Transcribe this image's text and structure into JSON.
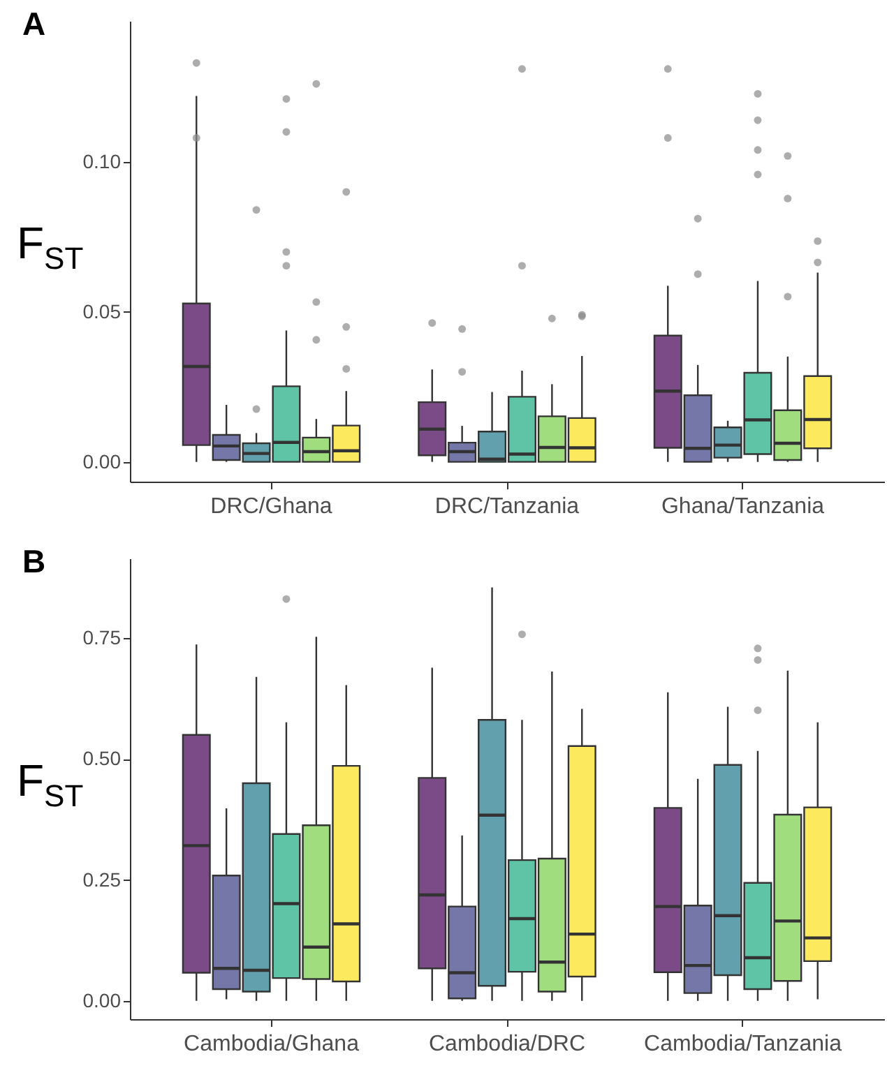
{
  "chart_data": [
    {
      "type": "box",
      "title": "A",
      "ylabel": "F$_{ST}$",
      "categories": [
        "DRC/Ghana",
        "DRC/Tanzania",
        "Ghana/Tanzania"
      ],
      "ylim": [
        -0.0066,
        0.147
      ],
      "yticks": [
        {
          "value": 0,
          "label": "0.00"
        },
        {
          "value": 0.05,
          "label": "0.05"
        },
        {
          "value": 0.1,
          "label": "0.10"
        }
      ],
      "series": [
        {
          "color": "#7b4b87",
          "boxes": [
            {
              "low": 0,
              "q1": 0.0056,
              "median": 0.0318,
              "q3": 0.0528,
              "high": 0.122,
              "outliers": [
                0.133,
                0.108
              ]
            },
            {
              "low": 0,
              "q1": 0.0022,
              "median": 0.0109,
              "q3": 0.0199,
              "high": 0.0308,
              "outliers": [
                0.0463
              ]
            },
            {
              "low": 0,
              "q1": 0.0047,
              "median": 0.0236,
              "q3": 0.0421,
              "high": 0.0587,
              "outliers": [
                0.131,
                0.108
              ]
            }
          ]
        },
        {
          "color": "#7577a9",
          "boxes": [
            {
              "low": 0,
              "q1": 0.0006,
              "median": 0.0053,
              "q3": 0.009,
              "high": 0.019
            },
            {
              "low": 0,
              "q1": 0,
              "median": 0.0034,
              "q3": 0.0064,
              "high": 0.012,
              "outliers": [
                0.0443,
                0.03
              ]
            },
            {
              "low": 0,
              "q1": 0,
              "median": 0.0045,
              "q3": 0.0222,
              "high": 0.0323,
              "outliers": [
                0.0811,
                0.0626
              ]
            }
          ]
        },
        {
          "color": "#62a0ae",
          "boxes": [
            {
              "low": 0,
              "q1": 0,
              "median": 0.0028,
              "q3": 0.0062,
              "high": 0.0096,
              "outliers": [
                0.084,
                0.0176
              ]
            },
            {
              "low": 0,
              "q1": 0,
              "median": 0.0009,
              "q3": 0.0101,
              "high": 0.0233
            },
            {
              "low": 0,
              "q1": 0.0014,
              "median": 0.0056,
              "q3": 0.0115,
              "high": 0.0137
            }
          ]
        },
        {
          "color": "#5ec4a5",
          "boxes": [
            {
              "low": 0,
              "q1": 0,
              "median": 0.0065,
              "q3": 0.0252,
              "high": 0.0438,
              "outliers": [
                0.121,
                0.11,
                0.07,
                0.0654
              ]
            },
            {
              "low": 0,
              "q1": 0,
              "median": 0.0026,
              "q3": 0.0217,
              "high": 0.0304,
              "outliers": [
                0.131,
                0.0654
              ]
            },
            {
              "low": 0,
              "q1": 0.0026,
              "median": 0.014,
              "q3": 0.0297,
              "high": 0.0603,
              "outliers": [
                0.1227,
                0.1139,
                0.104,
                0.0958
              ]
            }
          ]
        },
        {
          "color": "#a0dd7f",
          "boxes": [
            {
              "low": 0,
              "q1": 0,
              "median": 0.0034,
              "q3": 0.0081,
              "high": 0.0143,
              "outliers": [
                0.126,
                0.0533,
                0.0407
              ]
            },
            {
              "low": 0,
              "q1": 0,
              "median": 0.0048,
              "q3": 0.0152,
              "high": 0.0259,
              "outliers": [
                0.0478
              ]
            },
            {
              "low": 0,
              "q1": 0.0006,
              "median": 0.0062,
              "q3": 0.0172,
              "high": 0.0351,
              "outliers": [
                0.102,
                0.0878,
                0.0551
              ]
            }
          ]
        },
        {
          "color": "#fde95e",
          "boxes": [
            {
              "low": 0,
              "q1": 0,
              "median": 0.0037,
              "q3": 0.0121,
              "high": 0.0236,
              "outliers": [
                0.09,
                0.045,
                0.031
              ]
            },
            {
              "low": 0,
              "q1": 0,
              "median": 0.0047,
              "q3": 0.0146,
              "high": 0.0353,
              "outliers": [
                0.049,
                0.0485
              ]
            },
            {
              "low": 0,
              "q1": 0.0045,
              "median": 0.0141,
              "q3": 0.0286,
              "high": 0.0631,
              "outliers": [
                0.0736,
                0.0665
              ]
            }
          ]
        }
      ]
    },
    {
      "type": "box",
      "title": "B",
      "ylabel": "F$_{ST}$",
      "categories": [
        "Cambodia/Ghana",
        "Cambodia/DRC",
        "Cambodia/Tanzania"
      ],
      "ylim": [
        -0.038,
        0.915
      ],
      "yticks": [
        {
          "value": 0,
          "label": "0.00"
        },
        {
          "value": 0.25,
          "label": "0.25"
        },
        {
          "value": 0.5,
          "label": "0.50"
        },
        {
          "value": 0.75,
          "label": "0.75"
        }
      ],
      "series": [
        {
          "color": "#7b4b87",
          "boxes": [
            {
              "low": 0,
              "q1": 0.058,
              "median": 0.321,
              "q3": 0.55,
              "high": 0.737
            },
            {
              "low": 0,
              "q1": 0.067,
              "median": 0.219,
              "q3": 0.461,
              "high": 0.689
            },
            {
              "low": 0,
              "q1": 0.059,
              "median": 0.195,
              "q3": 0.399,
              "high": 0.638
            }
          ]
        },
        {
          "color": "#7577a9",
          "boxes": [
            {
              "low": 0.003,
              "q1": 0.024,
              "median": 0.067,
              "q3": 0.259,
              "high": 0.398
            },
            {
              "low": 0,
              "q1": 0.005,
              "median": 0.058,
              "q3": 0.195,
              "high": 0.342
            },
            {
              "low": 0,
              "q1": 0.016,
              "median": 0.073,
              "q3": 0.197,
              "high": 0.459
            }
          ]
        },
        {
          "color": "#62a0ae",
          "boxes": [
            {
              "low": 0,
              "q1": 0.019,
              "median": 0.063,
              "q3": 0.45,
              "high": 0.67
            },
            {
              "low": 0,
              "q1": 0.031,
              "median": 0.384,
              "q3": 0.581,
              "high": 0.855
            },
            {
              "low": 0,
              "q1": 0.053,
              "median": 0.176,
              "q3": 0.488,
              "high": 0.608
            }
          ]
        },
        {
          "color": "#5ec4a5",
          "boxes": [
            {
              "low": 0,
              "q1": 0.047,
              "median": 0.201,
              "q3": 0.345,
              "high": 0.576,
              "outliers": [
                0.831
              ]
            },
            {
              "low": 0,
              "q1": 0.06,
              "median": 0.17,
              "q3": 0.291,
              "high": 0.581,
              "outliers": [
                0.758
              ]
            },
            {
              "low": 0,
              "q1": 0.024,
              "median": 0.089,
              "q3": 0.244,
              "high": 0.517,
              "outliers": [
                0.729,
                0.705,
                0.601
              ]
            }
          ]
        },
        {
          "color": "#a0dd7f",
          "boxes": [
            {
              "low": 0,
              "q1": 0.045,
              "median": 0.111,
              "q3": 0.363,
              "high": 0.753
            },
            {
              "low": 0,
              "q1": 0.019,
              "median": 0.08,
              "q3": 0.294,
              "high": 0.681
            },
            {
              "low": 0,
              "q1": 0.041,
              "median": 0.165,
              "q3": 0.385,
              "high": 0.683
            }
          ]
        },
        {
          "color": "#fde95e",
          "boxes": [
            {
              "low": 0,
              "q1": 0.04,
              "median": 0.159,
              "q3": 0.486,
              "high": 0.653
            },
            {
              "low": 0,
              "q1": 0.05,
              "median": 0.138,
              "q3": 0.527,
              "high": 0.604
            },
            {
              "low": 0.003,
              "q1": 0.082,
              "median": 0.13,
              "q3": 0.4,
              "high": 0.576
            }
          ]
        }
      ]
    }
  ]
}
